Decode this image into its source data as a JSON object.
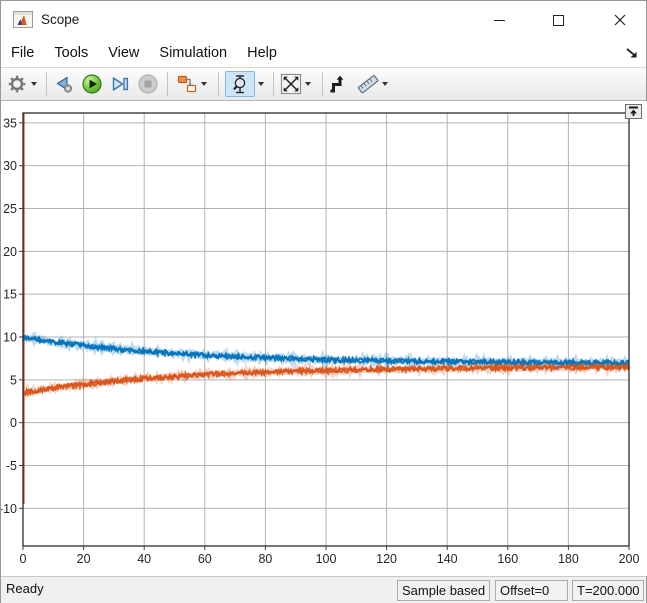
{
  "window": {
    "title": "Scope"
  },
  "menu": {
    "items": [
      "File",
      "Tools",
      "View",
      "Simulation",
      "Help"
    ]
  },
  "toolbar": {
    "buttons": [
      {
        "name": "settings-gear",
        "dropdown": true
      },
      {
        "name": "step-back",
        "disabled": false
      },
      {
        "name": "run",
        "disabled": false
      },
      {
        "name": "step-forward",
        "disabled": false
      },
      {
        "name": "stop",
        "disabled": true
      },
      {
        "name": "highlight-simulink-block",
        "dropdown": true
      },
      {
        "name": "zoom-y",
        "dropdown": true,
        "active": true
      },
      {
        "name": "autoscale",
        "dropdown": true
      },
      {
        "name": "trigger",
        "disabled": false
      },
      {
        "name": "measurements",
        "dropdown": true
      }
    ]
  },
  "chart_data": {
    "type": "line",
    "title": "",
    "xlim": [
      0,
      200
    ],
    "ylim": [
      -14.4,
      36.15
    ],
    "xticks": [
      0,
      20,
      40,
      60,
      80,
      100,
      120,
      140,
      160,
      180,
      200
    ],
    "yticks": [
      -10,
      -5,
      0,
      5,
      10,
      15,
      20,
      25,
      30,
      35
    ],
    "grid": true,
    "legend": "none",
    "gridline_color": "#b2b2b2",
    "frame_color": "#1a1a1a",
    "tick_label_color": "#262626",
    "series": [
      {
        "name": "signal-blue",
        "color": "#0072BD",
        "noise_amplitude": 0.27,
        "x": [
          0,
          10,
          20,
          30,
          40,
          50,
          60,
          70,
          80,
          90,
          100,
          110,
          120,
          130,
          140,
          150,
          160,
          170,
          180,
          190,
          200
        ],
        "values": [
          10.0,
          9.46,
          9.01,
          8.64,
          8.34,
          8.08,
          7.88,
          7.71,
          7.57,
          7.45,
          7.35,
          7.28,
          7.21,
          7.16,
          7.11,
          7.08,
          7.05,
          7.02,
          7.0,
          6.99,
          6.97
        ]
      },
      {
        "name": "signal-orange",
        "color": "#D95319",
        "noise_amplitude": 0.27,
        "x": [
          0,
          10,
          20,
          30,
          40,
          50,
          60,
          70,
          80,
          90,
          100,
          110,
          120,
          130,
          140,
          150,
          160,
          170,
          180,
          190,
          200
        ],
        "values": [
          3.5,
          4.03,
          4.47,
          4.84,
          5.14,
          5.38,
          5.59,
          5.76,
          5.9,
          6.01,
          6.1,
          6.18,
          6.24,
          6.29,
          6.33,
          6.37,
          6.4,
          6.42,
          6.44,
          6.46,
          6.47
        ],
        "startup_transient": {
          "t": 0.25,
          "from": -9.5,
          "to": 36.1
        }
      }
    ]
  },
  "status_bar": {
    "state": "Ready",
    "boxes": [
      "Sample based",
      "Offset=0",
      "T=200.000"
    ]
  }
}
